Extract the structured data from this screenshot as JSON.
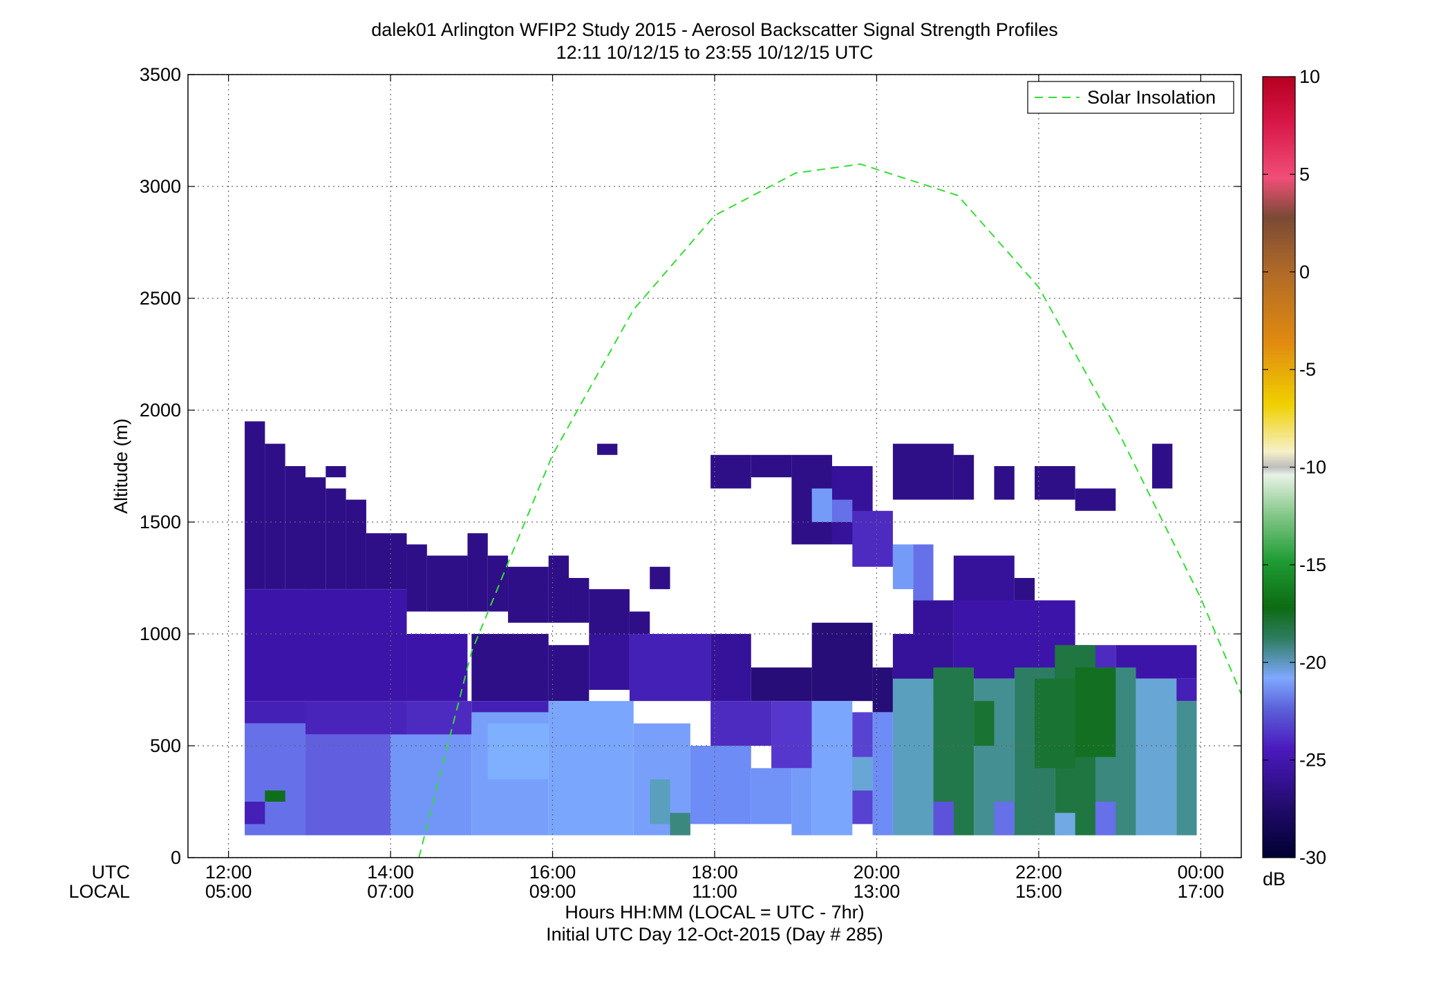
{
  "chart_data": {
    "type": "heatmap",
    "title": "dalek01 Arlington WFIP2 Study 2015 - Aerosol Backscatter Signal Strength Profiles",
    "subtitle": "12:11 10/12/15 to 23:55 10/12/15  UTC",
    "ylabel": "Altitude (m)",
    "xlabel": "Hours HH:MM  (LOCAL = UTC - 7hr)",
    "xlabel2": "Initial UTC Day 12-Oct-2015 (Day # 285)",
    "xlabel_row_utc": "UTC",
    "xlabel_row_local": "LOCAL",
    "xlim_hours_utc": [
      11.5,
      24.5
    ],
    "ylim": [
      0,
      3500
    ],
    "grid": true,
    "x_ticks": [
      {
        "hour": 12,
        "utc": "12:00",
        "local": "05:00"
      },
      {
        "hour": 14,
        "utc": "14:00",
        "local": "07:00"
      },
      {
        "hour": 16,
        "utc": "16:00",
        "local": "09:00"
      },
      {
        "hour": 18,
        "utc": "18:00",
        "local": "11:00"
      },
      {
        "hour": 20,
        "utc": "20:00",
        "local": "13:00"
      },
      {
        "hour": 22,
        "utc": "22:00",
        "local": "15:00"
      },
      {
        "hour": 24,
        "utc": "00:00",
        "local": "17:00"
      }
    ],
    "y_ticks": [
      0,
      500,
      1000,
      1500,
      2000,
      2500,
      3000,
      3500
    ],
    "colorbar": {
      "unit": "dB",
      "range": [
        -30,
        10
      ],
      "ticks": [
        10,
        5,
        0,
        -5,
        -10,
        -15,
        -20,
        -25,
        -30
      ]
    },
    "legend": {
      "position": "top-right",
      "entries": [
        "Solar Insolation"
      ]
    },
    "solar_insolation": {
      "color": "#33dd33",
      "style": "dashed",
      "points": [
        {
          "hour": 14.35,
          "alt": 0
        },
        {
          "hour": 15,
          "alt": 920
        },
        {
          "hour": 16,
          "alt": 1800
        },
        {
          "hour": 17,
          "alt": 2450
        },
        {
          "hour": 18,
          "alt": 2870
        },
        {
          "hour": 19,
          "alt": 3060
        },
        {
          "hour": 19.8,
          "alt": 3100
        },
        {
          "hour": 21,
          "alt": 2960
        },
        {
          "hour": 22,
          "alt": 2550
        },
        {
          "hour": 23,
          "alt": 1890
        },
        {
          "hour": 24,
          "alt": 1160
        },
        {
          "hour": 24.5,
          "alt": 730
        }
      ]
    },
    "time_bins": {
      "start_hour": 12.2,
      "step_hour": 0.25,
      "count": 47
    },
    "altitude_bins": {
      "start_m": 100,
      "step_m": 100,
      "count": 18
    },
    "regions": [
      {
        "t0": 12.2,
        "t1": 12.45,
        "a0": 1200,
        "a1": 1950,
        "db": -27.5
      },
      {
        "t0": 12.45,
        "t1": 12.7,
        "a0": 1200,
        "a1": 1850,
        "db": -27.5
      },
      {
        "t0": 12.7,
        "t1": 12.95,
        "a0": 1200,
        "a1": 1750,
        "db": -27.5
      },
      {
        "t0": 12.95,
        "t1": 13.2,
        "a0": 1200,
        "a1": 1700,
        "db": -27.5
      },
      {
        "t0": 13.2,
        "t1": 13.45,
        "a0": 1200,
        "a1": 1650,
        "db": -27.5
      },
      {
        "t0": 13.2,
        "t1": 13.45,
        "a0": 1700,
        "a1": 1750,
        "db": -27.5
      },
      {
        "t0": 13.45,
        "t1": 13.7,
        "a0": 1200,
        "a1": 1600,
        "db": -27.5
      },
      {
        "t0": 13.7,
        "t1": 14.2,
        "a0": 1200,
        "a1": 1450,
        "db": -27.5
      },
      {
        "t0": 14.2,
        "t1": 14.45,
        "a0": 1100,
        "a1": 1400,
        "db": -27.5
      },
      {
        "t0": 14.45,
        "t1": 14.95,
        "a0": 1100,
        "a1": 1350,
        "db": -27.5
      },
      {
        "t0": 14.95,
        "t1": 15.2,
        "a0": 1100,
        "a1": 1450,
        "db": -27.5
      },
      {
        "t0": 15.2,
        "t1": 15.45,
        "a0": 1100,
        "a1": 1350,
        "db": -27.5
      },
      {
        "t0": 15.45,
        "t1": 15.95,
        "a0": 1050,
        "a1": 1300,
        "db": -27.5
      },
      {
        "t0": 15.95,
        "t1": 16.2,
        "a0": 1050,
        "a1": 1350,
        "db": -27.5
      },
      {
        "t0": 16.2,
        "t1": 16.45,
        "a0": 1050,
        "a1": 1250,
        "db": -27.5
      },
      {
        "t0": 16.45,
        "t1": 16.95,
        "a0": 1000,
        "a1": 1200,
        "db": -27.5
      },
      {
        "t0": 16.95,
        "t1": 17.2,
        "a0": 1000,
        "a1": 1100,
        "db": -27.5
      },
      {
        "t0": 17.2,
        "t1": 17.45,
        "a0": 1200,
        "a1": 1300,
        "db": -27.5
      },
      {
        "t0": 16.55,
        "t1": 16.8,
        "a0": 1800,
        "a1": 1850,
        "db": -27.5
      },
      {
        "t0": 12.2,
        "t1": 12.95,
        "a0": 700,
        "a1": 1200,
        "db": -26.5
      },
      {
        "t0": 12.95,
        "t1": 14.2,
        "a0": 700,
        "a1": 1200,
        "db": -26.5
      },
      {
        "t0": 14.2,
        "t1": 14.95,
        "a0": 700,
        "a1": 1000,
        "db": -26.5
      },
      {
        "t0": 15.0,
        "t1": 15.95,
        "a0": 700,
        "a1": 1000,
        "db": -27.5
      },
      {
        "t0": 15.95,
        "t1": 16.45,
        "a0": 700,
        "a1": 950,
        "db": -27.5
      },
      {
        "t0": 16.45,
        "t1": 16.95,
        "a0": 750,
        "a1": 1000,
        "db": -27.0
      },
      {
        "t0": 16.95,
        "t1": 17.95,
        "a0": 700,
        "a1": 1000,
        "db": -26.0
      },
      {
        "t0": 17.95,
        "t1": 18.45,
        "a0": 700,
        "a1": 1000,
        "db": -27.0
      },
      {
        "t0": 18.45,
        "t1": 19.2,
        "a0": 700,
        "a1": 850,
        "db": -28.0
      },
      {
        "t0": 19.2,
        "t1": 19.95,
        "a0": 700,
        "a1": 1050,
        "db": -28.0
      },
      {
        "t0": 19.95,
        "t1": 20.2,
        "a0": 650,
        "a1": 850,
        "db": -28.0
      },
      {
        "t0": 12.2,
        "t1": 12.95,
        "a0": 600,
        "a1": 700,
        "db": -26.0
      },
      {
        "t0": 12.95,
        "t1": 14.2,
        "a0": 550,
        "a1": 700,
        "db": -25.8
      },
      {
        "t0": 14.2,
        "t1": 15.0,
        "a0": 550,
        "a1": 700,
        "db": -25.5
      },
      {
        "t0": 15.0,
        "t1": 15.95,
        "a0": 600,
        "a1": 700,
        "db": -26.0
      },
      {
        "t0": 12.2,
        "t1": 12.95,
        "a0": 100,
        "a1": 600,
        "db": -24.0
      },
      {
        "t0": 12.95,
        "t1": 14.0,
        "a0": 100,
        "a1": 550,
        "db": -24.3
      },
      {
        "t0": 12.2,
        "t1": 12.45,
        "a0": 150,
        "a1": 250,
        "db": -26.0
      },
      {
        "t0": 12.45,
        "t1": 12.7,
        "a0": 250,
        "a1": 300,
        "db": -19.0
      },
      {
        "t0": 14.0,
        "t1": 15.0,
        "a0": 100,
        "a1": 550,
        "db": -23.2
      },
      {
        "t0": 15.0,
        "t1": 15.95,
        "a0": 100,
        "a1": 650,
        "db": -22.8
      },
      {
        "t0": 15.2,
        "t1": 15.95,
        "a0": 350,
        "a1": 600,
        "db": -22.3
      },
      {
        "t0": 15.95,
        "t1": 17.0,
        "a0": 100,
        "a1": 700,
        "db": -22.6
      },
      {
        "t0": 17.0,
        "t1": 17.7,
        "a0": 100,
        "a1": 600,
        "db": -22.8
      },
      {
        "t0": 17.2,
        "t1": 17.45,
        "a0": 150,
        "a1": 350,
        "db": -21.5
      },
      {
        "t0": 17.45,
        "t1": 17.7,
        "a0": 100,
        "a1": 200,
        "db": -20.8
      },
      {
        "t0": 17.7,
        "t1": 18.45,
        "a0": 150,
        "a1": 500,
        "db": -23.5
      },
      {
        "t0": 18.45,
        "t1": 18.95,
        "a0": 150,
        "a1": 400,
        "db": -23.3
      },
      {
        "t0": 17.95,
        "t1": 18.7,
        "a0": 500,
        "a1": 700,
        "db": -25.5
      },
      {
        "t0": 18.7,
        "t1": 19.2,
        "a0": 400,
        "a1": 700,
        "db": -25.0
      },
      {
        "t0": 18.95,
        "t1": 19.2,
        "a0": 100,
        "a1": 400,
        "db": -23.0
      },
      {
        "t0": 19.2,
        "t1": 19.7,
        "a0": 100,
        "a1": 700,
        "db": -22.6
      },
      {
        "t0": 19.7,
        "t1": 19.95,
        "a0": 150,
        "a1": 650,
        "db": -24.8
      },
      {
        "t0": 19.95,
        "t1": 20.2,
        "a0": 100,
        "a1": 650,
        "db": -23.5
      },
      {
        "t0": 19.7,
        "t1": 19.95,
        "a0": 300,
        "a1": 450,
        "db": -21.8
      },
      {
        "t0": 17.95,
        "t1": 18.45,
        "a0": 1650,
        "a1": 1800,
        "db": -27.5
      },
      {
        "t0": 18.45,
        "t1": 18.95,
        "a0": 1700,
        "a1": 1800,
        "db": -27.5
      },
      {
        "t0": 18.95,
        "t1": 19.45,
        "a0": 1400,
        "a1": 1800,
        "db": -27.5
      },
      {
        "t0": 19.45,
        "t1": 19.95,
        "a0": 1400,
        "a1": 1750,
        "db": -27.0
      },
      {
        "t0": 19.2,
        "t1": 19.45,
        "a0": 1500,
        "a1": 1650,
        "db": -23.0
      },
      {
        "t0": 19.45,
        "t1": 19.7,
        "a0": 1500,
        "a1": 1600,
        "db": -24.0
      },
      {
        "t0": 19.7,
        "t1": 20.2,
        "a0": 1300,
        "a1": 1550,
        "db": -25.5
      },
      {
        "t0": 20.2,
        "t1": 20.45,
        "a0": 1200,
        "a1": 1400,
        "db": -23.0
      },
      {
        "t0": 20.45,
        "t1": 20.7,
        "a0": 1150,
        "a1": 1400,
        "db": -24.0
      },
      {
        "t0": 20.45,
        "t1": 20.95,
        "a0": 1000,
        "a1": 1150,
        "db": -27.0
      },
      {
        "t0": 20.95,
        "t1": 21.7,
        "a0": 1000,
        "a1": 1350,
        "db": -27.0
      },
      {
        "t0": 20.2,
        "t1": 20.95,
        "a0": 1600,
        "a1": 1850,
        "db": -27.5
      },
      {
        "t0": 20.95,
        "t1": 21.2,
        "a0": 1600,
        "a1": 1800,
        "db": -27.5
      },
      {
        "t0": 21.45,
        "t1": 21.7,
        "a0": 1600,
        "a1": 1750,
        "db": -27.5
      },
      {
        "t0": 21.7,
        "t1": 21.95,
        "a0": 1150,
        "a1": 1250,
        "db": -27.5
      },
      {
        "t0": 21.95,
        "t1": 22.45,
        "a0": 1600,
        "a1": 1750,
        "db": -27.5
      },
      {
        "t0": 22.45,
        "t1": 22.95,
        "a0": 1550,
        "a1": 1650,
        "db": -27.5
      },
      {
        "t0": 23.4,
        "t1": 23.65,
        "a0": 1650,
        "a1": 1850,
        "db": -27.5
      },
      {
        "t0": 20.2,
        "t1": 20.95,
        "a0": 700,
        "a1": 1000,
        "db": -27.0
      },
      {
        "t0": 20.95,
        "t1": 22.45,
        "a0": 800,
        "a1": 1150,
        "db": -26.5
      },
      {
        "t0": 22.45,
        "t1": 22.95,
        "a0": 800,
        "a1": 950,
        "db": -25.5
      },
      {
        "t0": 22.95,
        "t1": 23.95,
        "a0": 800,
        "a1": 950,
        "db": -26.5
      },
      {
        "t0": 20.2,
        "t1": 20.7,
        "a0": 100,
        "a1": 800,
        "db": -21.5
      },
      {
        "t0": 20.7,
        "t1": 21.2,
        "a0": 100,
        "a1": 850,
        "db": -20.0
      },
      {
        "t0": 20.7,
        "t1": 20.95,
        "a0": 100,
        "a1": 250,
        "db": -24.5
      },
      {
        "t0": 21.2,
        "t1": 21.7,
        "a0": 100,
        "a1": 800,
        "db": -21.0
      },
      {
        "t0": 21.45,
        "t1": 21.7,
        "a0": 100,
        "a1": 250,
        "db": -24.0
      },
      {
        "t0": 21.7,
        "t1": 22.2,
        "a0": 100,
        "a1": 850,
        "db": -20.5
      },
      {
        "t0": 22.2,
        "t1": 22.7,
        "a0": 100,
        "a1": 950,
        "db": -19.8
      },
      {
        "t0": 22.2,
        "t1": 22.45,
        "a0": 100,
        "a1": 200,
        "db": -22.0
      },
      {
        "t0": 22.7,
        "t1": 23.2,
        "a0": 100,
        "a1": 850,
        "db": -20.8
      },
      {
        "t0": 22.7,
        "t1": 22.95,
        "a0": 100,
        "a1": 250,
        "db": -24.0
      },
      {
        "t0": 23.2,
        "t1": 23.7,
        "a0": 100,
        "a1": 800,
        "db": -21.8
      },
      {
        "t0": 23.7,
        "t1": 23.95,
        "a0": 100,
        "a1": 700,
        "db": -21.0
      },
      {
        "t0": 23.7,
        "t1": 23.95,
        "a0": 700,
        "a1": 800,
        "db": -26.0
      },
      {
        "t0": 21.95,
        "t1": 22.45,
        "a0": 400,
        "a1": 800,
        "db": -19.5
      },
      {
        "t0": 22.45,
        "t1": 22.95,
        "a0": 450,
        "a1": 850,
        "db": -19.2
      },
      {
        "t0": 21.2,
        "t1": 21.45,
        "a0": 500,
        "a1": 700,
        "db": -19.5
      }
    ]
  }
}
